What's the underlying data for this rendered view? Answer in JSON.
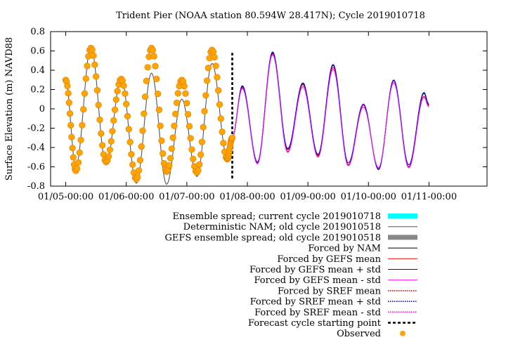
{
  "chart_data": {
    "type": "line",
    "title": "Trident Pier (NOAA station 80.594W 28.417N); Cycle 2019010718",
    "xlabel": "",
    "ylabel": "Surface Elevation (m) NAVD88",
    "x_unit": "MM/DD-HH:MM (2019)",
    "xlim": [
      "01/04-18:00",
      "01/11-23:00"
    ],
    "ylim": [
      -0.8,
      0.8
    ],
    "x_ticks": [
      "01/05-00:00",
      "01/06-00:00",
      "01/07-00:00",
      "01/08-00:00",
      "01/09-00:00",
      "01/10-00:00",
      "01/11-00:00"
    ],
    "y_ticks": [
      -0.8,
      -0.6,
      -0.4,
      -0.2,
      0,
      0.2,
      0.4,
      0.6,
      0.8
    ],
    "grid": false,
    "legend_position": "below-right",
    "forecast_start": "01/07-18:00",
    "series": [
      {
        "name": "Ensemble spread; current cycle 2019010718",
        "color": "#00ffff",
        "style": "band",
        "points": []
      },
      {
        "name": "Deterministic NAM; old cycle 2019010518",
        "color": "#555555",
        "style": "thin",
        "points": [
          [
            "01/05-00:00",
            0.29
          ],
          [
            "01/05-04:00",
            -0.6
          ],
          [
            "01/05-10:00",
            0.64
          ],
          [
            "01/05-16:00",
            -0.58
          ],
          [
            "01/05-22:00",
            0.32
          ],
          [
            "01/06-04:00",
            -0.77
          ],
          [
            "01/06-10:00",
            0.37
          ],
          [
            "01/06-16:00",
            -0.78
          ],
          [
            "01/06-22:00",
            0.1
          ],
          [
            "01/07-04:00",
            -0.7
          ],
          [
            "01/07-10:00",
            0.47
          ],
          [
            "01/07-16:00",
            -0.5
          ],
          [
            "01/07-18:00",
            -0.3
          ]
        ]
      },
      {
        "name": "GEFS ensemble spread; old cycle 2019010518",
        "color": "#888888",
        "style": "band",
        "points": []
      },
      {
        "name": "Forced by NAM",
        "color": "#000000",
        "style": "solid",
        "points": [
          [
            "01/07-18:00",
            -0.3
          ],
          [
            "01/07-22:00",
            0.23
          ],
          [
            "01/08-04:00",
            -0.56
          ],
          [
            "01/08-10:00",
            0.58
          ],
          [
            "01/08-16:00",
            -0.42
          ],
          [
            "01/08-22:00",
            0.26
          ],
          [
            "01/09-04:00",
            -0.48
          ],
          [
            "01/09-10:00",
            0.45
          ],
          [
            "01/09-16:00",
            -0.58
          ],
          [
            "01/09-22:00",
            0.04
          ],
          [
            "01/10-04:00",
            -0.62
          ],
          [
            "01/10-10:00",
            0.29
          ],
          [
            "01/10-16:00",
            -0.6
          ],
          [
            "01/10-22:00",
            0.16
          ],
          [
            "01/11-00:00",
            0.04
          ]
        ]
      },
      {
        "name": "Forced by GEFS mean",
        "color": "#ff0000",
        "style": "solid",
        "points": [
          [
            "01/07-18:00",
            -0.3
          ],
          [
            "01/07-22:00",
            0.22
          ],
          [
            "01/08-04:00",
            -0.56
          ],
          [
            "01/08-10:00",
            0.57
          ],
          [
            "01/08-16:00",
            -0.44
          ],
          [
            "01/08-22:00",
            0.25
          ],
          [
            "01/09-04:00",
            -0.49
          ],
          [
            "01/09-10:00",
            0.43
          ],
          [
            "01/09-16:00",
            -0.58
          ],
          [
            "01/09-22:00",
            0.04
          ],
          [
            "01/10-04:00",
            -0.62
          ],
          [
            "01/10-10:00",
            0.29
          ],
          [
            "01/10-16:00",
            -0.6
          ],
          [
            "01/10-22:00",
            0.13
          ],
          [
            "01/11-00:00",
            0.03
          ]
        ]
      },
      {
        "name": "Forced by GEFS mean + std",
        "color": "#0000ff",
        "style": "solid",
        "points": [
          [
            "01/07-18:00",
            -0.3
          ],
          [
            "01/07-22:00",
            0.24
          ],
          [
            "01/08-04:00",
            -0.55
          ],
          [
            "01/08-10:00",
            0.59
          ],
          [
            "01/08-16:00",
            -0.41
          ],
          [
            "01/08-22:00",
            0.27
          ],
          [
            "01/09-04:00",
            -0.47
          ],
          [
            "01/09-10:00",
            0.46
          ],
          [
            "01/09-16:00",
            -0.56
          ],
          [
            "01/09-22:00",
            0.05
          ],
          [
            "01/10-04:00",
            -0.63
          ],
          [
            "01/10-10:00",
            0.3
          ],
          [
            "01/10-16:00",
            -0.58
          ],
          [
            "01/10-22:00",
            0.17
          ],
          [
            "01/11-00:00",
            0.05
          ]
        ]
      },
      {
        "name": "Forced by GEFS mean - std",
        "color": "#ff00ff",
        "style": "solid",
        "points": [
          [
            "01/07-18:00",
            -0.3
          ],
          [
            "01/07-22:00",
            0.21
          ],
          [
            "01/08-04:00",
            -0.57
          ],
          [
            "01/08-10:00",
            0.56
          ],
          [
            "01/08-16:00",
            -0.45
          ],
          [
            "01/08-22:00",
            0.23
          ],
          [
            "01/09-04:00",
            -0.5
          ],
          [
            "01/09-10:00",
            0.41
          ],
          [
            "01/09-16:00",
            -0.59
          ],
          [
            "01/09-22:00",
            0.02
          ],
          [
            "01/10-04:00",
            -0.61
          ],
          [
            "01/10-10:00",
            0.27
          ],
          [
            "01/10-16:00",
            -0.61
          ],
          [
            "01/10-22:00",
            0.12
          ],
          [
            "01/11-00:00",
            0.02
          ]
        ]
      },
      {
        "name": "Forced by SREF mean",
        "color": "#ff0000",
        "style": "dotted",
        "points": []
      },
      {
        "name": "Forced by SREF mean + std",
        "color": "#0000ff",
        "style": "dotted",
        "points": []
      },
      {
        "name": "Forced by SREF mean - std",
        "color": "#ff00ff",
        "style": "dotted",
        "points": []
      },
      {
        "name": "Forecast cycle starting point",
        "color": "#000000",
        "style": "dashed",
        "points": [
          [
            "01/07-18:00",
            -0.72
          ],
          [
            "01/07-18:00",
            0.58
          ]
        ]
      },
      {
        "name": "Observed",
        "color": "#ffa500",
        "style": "markers",
        "points": [
          [
            "01/05-00:00",
            0.3
          ],
          [
            "01/05-04:00",
            -0.64
          ],
          [
            "01/05-10:00",
            0.63
          ],
          [
            "01/05-16:00",
            -0.55
          ],
          [
            "01/05-22:00",
            0.31
          ],
          [
            "01/06-04:00",
            -0.73
          ],
          [
            "01/06-10:00",
            0.63
          ],
          [
            "01/06-16:00",
            -0.65
          ],
          [
            "01/06-22:00",
            0.3
          ],
          [
            "01/07-04:00",
            -0.66
          ],
          [
            "01/07-10:00",
            0.61
          ],
          [
            "01/07-16:00",
            -0.52
          ],
          [
            "01/07-18:00",
            -0.3
          ]
        ]
      }
    ]
  }
}
